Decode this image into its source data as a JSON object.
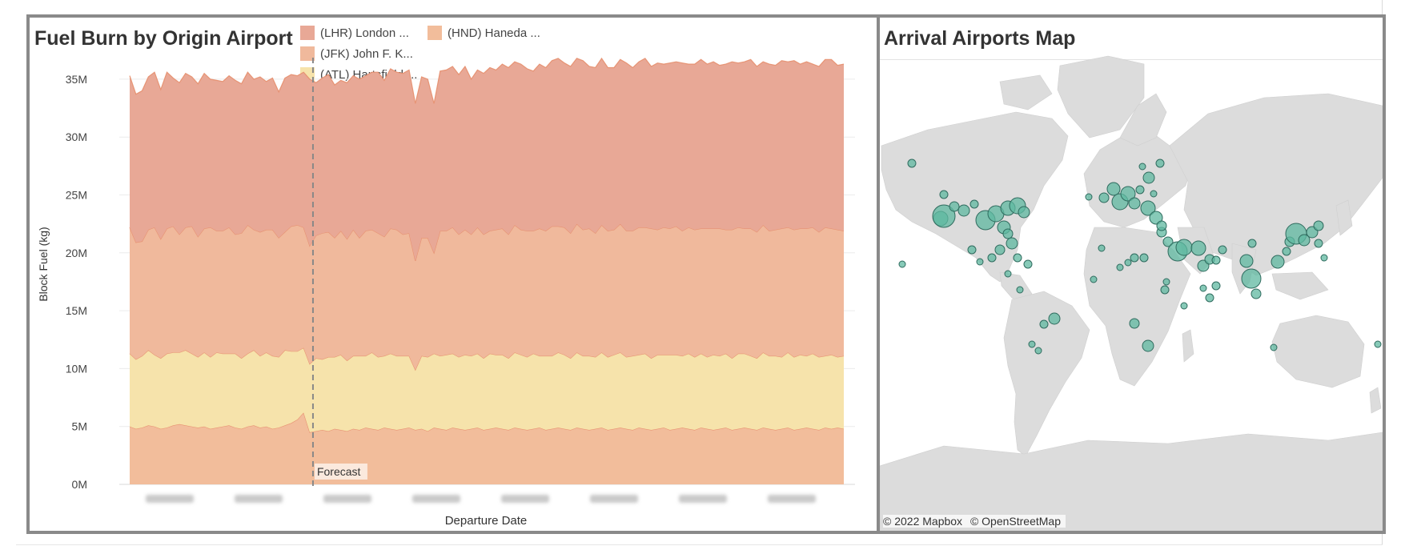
{
  "chart_panel": {
    "title": "Fuel Burn by Origin Airport"
  },
  "map_panel": {
    "title": "Arrival Airports Map",
    "attribution": [
      "© 2022 Mapbox",
      "© OpenStreetMap"
    ],
    "marker_color": "#5fb8a0",
    "marker_stroke": "#2f6b5e",
    "land_color": "#dcdcdc"
  },
  "chart_data": {
    "type": "area",
    "stacked": true,
    "title": "Fuel Burn by Origin Airport",
    "xlabel": "Departure Date",
    "ylabel": "Block Fuel (kg)",
    "ylim": [
      0,
      37000000
    ],
    "y_ticks": [
      0,
      5000000,
      10000000,
      15000000,
      20000000,
      25000000,
      30000000,
      35000000
    ],
    "y_tick_labels": [
      "0M",
      "5M",
      "10M",
      "15M",
      "20M",
      "25M",
      "30M",
      "35M"
    ],
    "grid": "horizontal",
    "legend_position": "top",
    "x_start": "Oct 2022",
    "x_end": "Jan 2023",
    "forecast_label": "Forecast",
    "forecast_index": 29,
    "series": [
      {
        "name": "(LHR) London ...",
        "color": "#e8a896",
        "values": [
          13.1,
          12.8,
          13.0,
          13.2,
          13.4,
          12.9,
          13.5,
          12.8,
          13.1,
          13.3,
          12.9,
          13.2,
          13.4,
          12.8,
          13.0,
          12.9,
          13.1,
          13.3,
          12.9,
          13.2,
          13.0,
          13.4,
          12.8,
          13.1,
          12.6,
          13.3,
          13.1,
          12.9,
          13.4,
          14.4,
          13.2,
          13.4,
          13.6,
          13.2,
          13.0,
          13.5,
          13.3,
          13.7,
          13.4,
          13.6,
          13.9,
          13.5,
          13.8,
          13.6,
          13.9,
          14.1,
          13.6,
          13.9,
          13.7,
          12.9,
          13.8,
          13.9,
          13.9,
          13.8,
          14.1,
          13.4,
          13.6,
          13.9,
          14.1,
          13.8,
          14.2,
          14.4,
          14.1,
          14.3,
          14.0,
          13.8,
          14.2,
          14.1,
          14.3,
          14.5,
          14.2,
          14.4,
          14.3,
          14.6,
          14.0,
          14.3,
          14.4,
          14.1,
          14.0,
          14.2,
          14.5,
          14.1,
          14.3,
          14.6,
          14.0,
          14.4,
          14.1,
          14.3,
          14.2,
          14.5,
          14.1,
          14.3,
          14.6,
          14.2,
          14.4,
          14.1,
          14.3,
          14.5,
          14.2,
          14.4,
          14.6,
          14.3,
          14.1,
          14.4,
          14.2,
          14.5,
          14.3,
          14.6,
          14.2,
          14.4,
          14.1,
          14.3,
          14.5,
          14.6,
          14.2,
          14.4
        ]
      },
      {
        "name": "(JFK) John F. K...",
        "color": "#f0b99c",
        "values": [
          10.9,
          10.1,
          9.9,
          10.4,
          11.0,
          10.3,
          10.8,
          10.9,
          10.2,
          10.6,
          11.0,
          10.4,
          10.7,
          11.2,
          10.5,
          10.6,
          10.9,
          10.3,
          10.8,
          11.1,
          10.4,
          10.7,
          10.6,
          10.9,
          10.3,
          10.2,
          10.8,
          10.9,
          10.4,
          10.2,
          10.6,
          10.9,
          10.8,
          10.3,
          10.7,
          10.5,
          10.9,
          10.2,
          10.8,
          10.6,
          10.7,
          10.3,
          10.8,
          10.9,
          10.5,
          10.6,
          9.4,
          10.2,
          10.3,
          8.7,
          10.8,
          10.7,
          10.9,
          10.6,
          10.8,
          10.5,
          10.9,
          10.7,
          10.6,
          10.8,
          10.9,
          10.7,
          11.0,
          10.8,
          10.9,
          10.6,
          11.0,
          10.8,
          11.2,
          10.9,
          11.0,
          10.8,
          11.1,
          10.9,
          11.0,
          10.7,
          11.0,
          10.9,
          10.8,
          11.1,
          10.9,
          10.8,
          11.0,
          10.9,
          11.2,
          10.8,
          11.0,
          10.9,
          11.1,
          10.8,
          10.9,
          11.0,
          10.8,
          11.1,
          10.9,
          11.0,
          10.7,
          11.1,
          10.9,
          10.8,
          11.0,
          10.9,
          11.0,
          10.8,
          10.9,
          11.1,
          10.8,
          11.0,
          10.9,
          11.0,
          10.9,
          10.8,
          11.1,
          10.9,
          11.0,
          10.8
        ]
      },
      {
        "name": "(ATL) Hartsfield-...",
        "color": "#f6e3ab",
        "values": [
          6.3,
          6.0,
          6.2,
          6.5,
          6.2,
          6.1,
          6.4,
          6.3,
          6.2,
          6.5,
          6.3,
          6.1,
          6.4,
          6.2,
          6.5,
          6.3,
          6.2,
          6.4,
          6.1,
          6.3,
          6.5,
          6.2,
          6.4,
          6.3,
          6.1,
          6.5,
          6.2,
          5.9,
          5.6,
          5.9,
          6.3,
          6.1,
          6.4,
          6.2,
          6.5,
          6.1,
          6.3,
          6.4,
          6.2,
          6.6,
          6.3,
          6.2,
          6.5,
          6.4,
          6.3,
          6.2,
          5.2,
          6.3,
          6.4,
          6.4,
          6.3,
          6.5,
          6.4,
          6.2,
          6.5,
          6.3,
          6.4,
          6.2,
          6.5,
          6.3,
          6.4,
          6.2,
          6.5,
          6.4,
          6.3,
          6.5,
          6.2,
          6.4,
          6.3,
          6.5,
          6.4,
          6.2,
          6.5,
          6.3,
          6.4,
          6.2,
          6.5,
          6.3,
          6.4,
          6.5,
          6.2,
          6.4,
          6.3,
          6.5,
          6.2,
          6.4,
          6.3,
          6.5,
          6.4,
          6.2,
          6.5,
          6.3,
          6.4,
          6.2,
          6.5,
          6.3,
          6.4,
          6.2,
          6.5,
          6.4,
          6.3,
          6.2,
          6.5,
          6.3,
          6.4,
          6.2,
          6.5,
          6.3,
          6.4,
          6.2,
          6.5,
          6.3,
          6.2,
          6.4,
          6.1,
          6.3
        ]
      },
      {
        "name": "(HND) Haneda ...",
        "color": "#f2bd9b",
        "values": [
          5.0,
          4.8,
          4.9,
          5.1,
          5.0,
          4.8,
          4.9,
          5.1,
          5.2,
          5.1,
          5.0,
          4.9,
          5.0,
          4.8,
          4.9,
          5.0,
          5.1,
          4.9,
          4.8,
          5.0,
          5.1,
          4.9,
          5.0,
          4.8,
          4.9,
          5.1,
          5.3,
          5.6,
          6.2,
          4.5,
          4.6,
          4.7,
          4.6,
          4.8,
          4.7,
          4.6,
          4.8,
          4.7,
          4.9,
          4.8,
          4.7,
          4.9,
          4.8,
          4.7,
          4.8,
          4.9,
          4.7,
          4.8,
          4.6,
          4.9,
          4.8,
          4.7,
          4.9,
          4.8,
          4.7,
          4.8,
          4.9,
          4.7,
          4.8,
          4.9,
          4.8,
          4.7,
          4.9,
          4.8,
          4.7,
          4.8,
          4.9,
          4.7,
          4.8,
          4.9,
          4.8,
          4.7,
          4.9,
          4.8,
          4.7,
          4.8,
          4.9,
          4.7,
          4.8,
          4.9,
          4.8,
          4.7,
          4.9,
          4.8,
          4.7,
          4.8,
          4.9,
          4.7,
          4.8,
          4.9,
          4.8,
          4.7,
          4.9,
          4.8,
          4.7,
          4.8,
          4.9,
          4.7,
          4.8,
          4.9,
          4.8,
          4.7,
          4.9,
          4.8,
          4.7,
          4.8,
          4.9,
          4.7,
          4.8,
          4.9,
          4.8,
          4.7,
          4.9,
          4.8,
          4.9,
          4.8
        ]
      }
    ]
  }
}
